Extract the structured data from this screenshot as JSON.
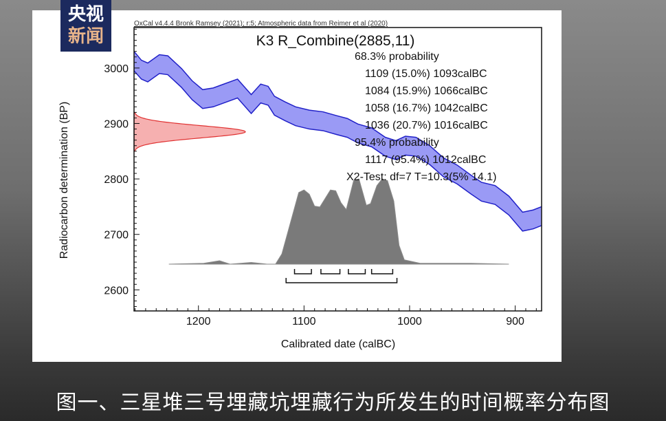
{
  "logo": {
    "line1": "央视",
    "line2": "新闻"
  },
  "caption": "图一、三星堆三号埋藏坑埋藏行为所发生的时间概率分布图",
  "chart_data": {
    "type": "area",
    "header_note": "OxCal v4.4.4 Bronk Ramsey (2021); r:5; Atmospheric data from Reimer et al (2020)",
    "title": "K3 R_Combine(2885,11)",
    "xlabel": "Calibrated date (calBC)",
    "ylabel": "Radiocarbon determination (BP)",
    "xlim": [
      1261,
      875
    ],
    "ylim": [
      2562,
      3073
    ],
    "x_ticks": [
      1200,
      1100,
      1000,
      900
    ],
    "y_ticks": [
      3000,
      2900,
      2800,
      2700,
      2600
    ],
    "annotations": [
      "68.3% probability",
      "1109 (15.0%) 1093calBC",
      "1084 (15.9%) 1066calBC",
      "1058 (16.7%) 1042calBC",
      "1036 (20.7%) 1016calBC",
      "95.4% probability",
      "1117 (95.4%) 1012calBC",
      "X2-Test: df=7 T=10.3(5% 14.1)"
    ],
    "radiocarbon_date": {
      "mean_bp": 2885,
      "sigma": 11,
      "color": "#e03030"
    },
    "calibration_curve": {
      "color": "#2020c8",
      "fill": "#9a9af5",
      "points": [
        [
          1261,
          3030,
          2995
        ],
        [
          1254,
          3014,
          2980
        ],
        [
          1248,
          3009,
          2975
        ],
        [
          1237,
          3024,
          2990
        ],
        [
          1229,
          3022,
          2988
        ],
        [
          1216,
          2999,
          2965
        ],
        [
          1206,
          2977,
          2943
        ],
        [
          1196,
          2961,
          2927
        ],
        [
          1186,
          2964,
          2930
        ],
        [
          1176,
          2971,
          2937
        ],
        [
          1163,
          2980,
          2946
        ],
        [
          1150,
          2952,
          2918
        ],
        [
          1141,
          2971,
          2937
        ],
        [
          1134,
          2967,
          2933
        ],
        [
          1128,
          2949,
          2915
        ],
        [
          1118,
          2939,
          2905
        ],
        [
          1108,
          2930,
          2896
        ],
        [
          1095,
          2924,
          2890
        ],
        [
          1082,
          2921,
          2887
        ],
        [
          1069,
          2914,
          2880
        ],
        [
          1059,
          2909,
          2875
        ],
        [
          1049,
          2899,
          2865
        ],
        [
          1036,
          2892,
          2858
        ],
        [
          1023,
          2875,
          2841
        ],
        [
          1013,
          2869,
          2835
        ],
        [
          1004,
          2877,
          2843
        ],
        [
          994,
          2875,
          2841
        ],
        [
          981,
          2860,
          2826
        ],
        [
          968,
          2838,
          2804
        ],
        [
          955,
          2825,
          2791
        ],
        [
          942,
          2807,
          2773
        ],
        [
          932,
          2794,
          2760
        ],
        [
          919,
          2788,
          2754
        ],
        [
          906,
          2769,
          2735
        ],
        [
          893,
          2740,
          2706
        ],
        [
          883,
          2744,
          2710
        ],
        [
          875,
          2750,
          2716
        ]
      ]
    },
    "posterior": {
      "color": "#7a7a7a",
      "points": [
        [
          1228,
          0
        ],
        [
          1195,
          0.01
        ],
        [
          1180,
          0.04
        ],
        [
          1170,
          0
        ],
        [
          1150,
          0.02
        ],
        [
          1135,
          0
        ],
        [
          1127,
          0
        ],
        [
          1121,
          0.12
        ],
        [
          1105,
          0.84
        ],
        [
          1100,
          0.87
        ],
        [
          1095,
          0.82
        ],
        [
          1090,
          0.68
        ],
        [
          1085,
          0.67
        ],
        [
          1075,
          0.87
        ],
        [
          1070,
          0.86
        ],
        [
          1065,
          0.72
        ],
        [
          1060,
          0.64
        ],
        [
          1053,
          0.98
        ],
        [
          1048,
          1.0
        ],
        [
          1041,
          0.69
        ],
        [
          1037,
          0.71
        ],
        [
          1031,
          0.92
        ],
        [
          1026,
          1.0
        ],
        [
          1021,
          0.98
        ],
        [
          1015,
          0.74
        ],
        [
          1010,
          0.22
        ],
        [
          1005,
          0.05
        ],
        [
          990,
          0.01
        ],
        [
          942,
          0.01
        ],
        [
          906,
          0
        ]
      ]
    },
    "ranges_68": [
      [
        1109,
        1093
      ],
      [
        1084,
        1066
      ],
      [
        1058,
        1042
      ],
      [
        1036,
        1016
      ]
    ],
    "ranges_95": [
      [
        1117,
        1012
      ]
    ]
  }
}
